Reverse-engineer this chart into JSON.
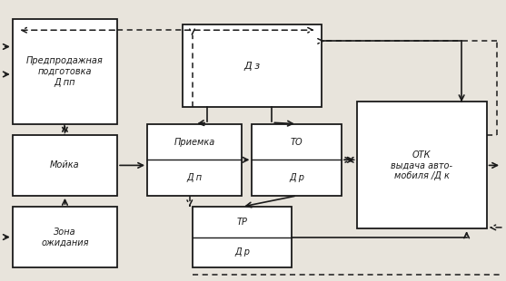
{
  "bg_color": "#e8e4dc",
  "box_color": "#ffffff",
  "line_color": "#1a1a1a",
  "fig_w": 5.57,
  "fig_h": 3.1,
  "boxes": {
    "predprod": [
      0.02,
      0.56,
      0.21,
      0.38
    ],
    "dz": [
      0.36,
      0.62,
      0.28,
      0.3
    ],
    "moika": [
      0.02,
      0.3,
      0.21,
      0.22
    ],
    "priemka": [
      0.29,
      0.3,
      0.19,
      0.26
    ],
    "to": [
      0.5,
      0.3,
      0.18,
      0.26
    ],
    "otk": [
      0.71,
      0.18,
      0.26,
      0.46
    ],
    "zona": [
      0.02,
      0.04,
      0.21,
      0.22
    ],
    "tr": [
      0.38,
      0.04,
      0.2,
      0.22
    ]
  },
  "labels": {
    "predprod": "Предпродажная\nподготовка\nД пп",
    "dz": "Д з",
    "moika": "Мойка",
    "priemka": "Приемка",
    "priemka_bot": "Д п",
    "to": "ТО",
    "to_bot": "Д р",
    "otk": "ОТК\nвыдача авто-\nмобиля /Д к",
    "zona": "Зона\nожидания",
    "tr": "ТР",
    "tr_bot": "Д р"
  }
}
